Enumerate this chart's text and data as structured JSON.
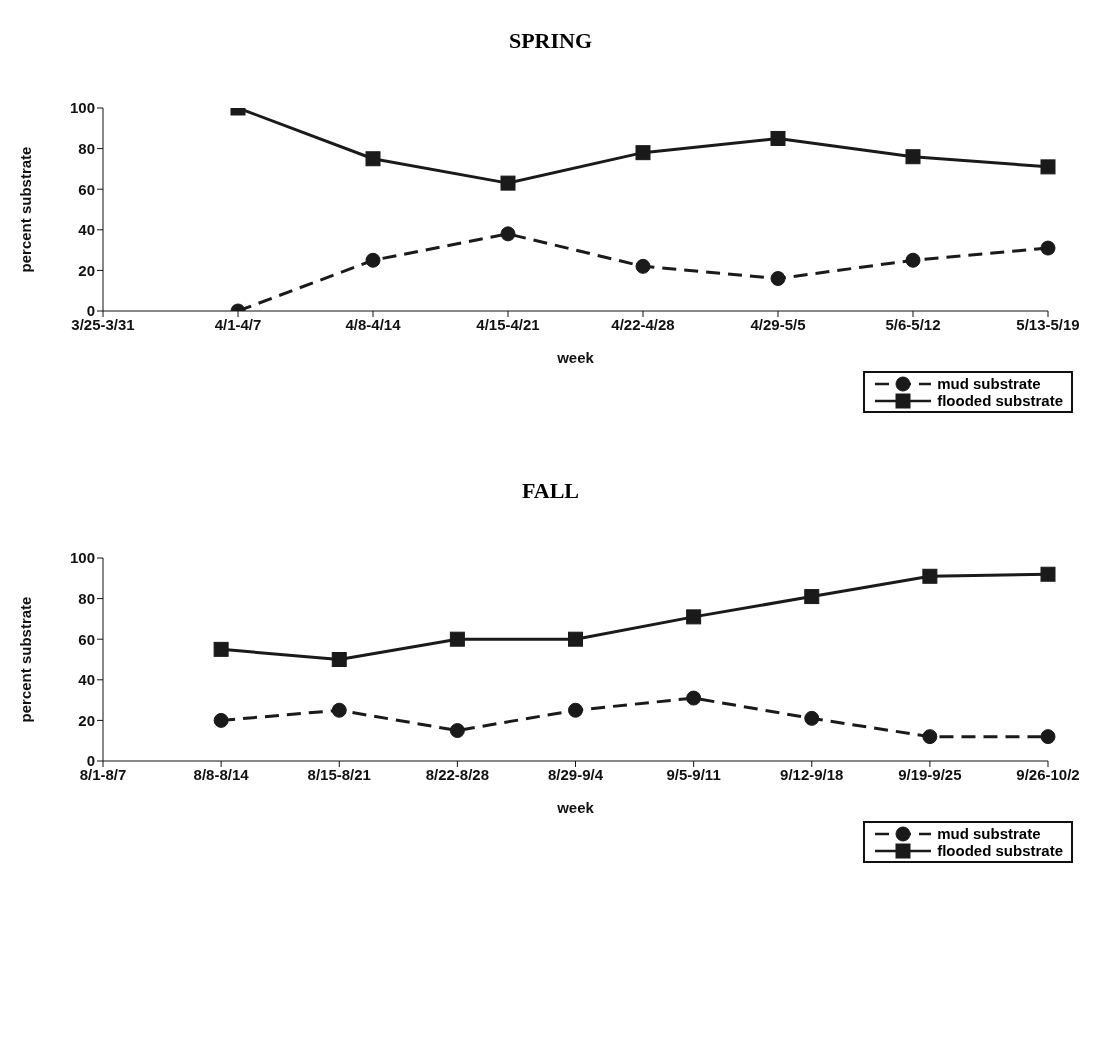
{
  "chart_data": [
    {
      "type": "line",
      "title": "SPRING",
      "xlabel": "week",
      "ylabel": "percent substrate",
      "categories": [
        "3/25-3/31",
        "4/1-4/7",
        "4/8-4/14",
        "4/15-4/21",
        "4/22-4/28",
        "4/29-5/5",
        "5/6-5/12",
        "5/13-5/19"
      ],
      "series": [
        {
          "name": "mud substrate",
          "color": "#1a1a1a",
          "marker": "circle",
          "line_style": "dashed",
          "values": [
            null,
            0,
            25,
            38,
            22,
            16,
            25,
            31
          ]
        },
        {
          "name": "flooded substrate",
          "color": "#1a1a1a",
          "marker": "square",
          "line_style": "solid",
          "values": [
            null,
            100,
            75,
            63,
            78,
            85,
            76,
            71
          ]
        }
      ],
      "ylim": [
        0,
        100
      ],
      "yticks": [
        0,
        20,
        40,
        60,
        80,
        100
      ],
      "grid": false,
      "legend": "bottom right"
    },
    {
      "type": "line",
      "title": "FALL",
      "xlabel": "week",
      "ylabel": "percent substrate",
      "categories": [
        "8/1-8/7",
        "8/8-8/14",
        "8/15-8/21",
        "8/22-8/28",
        "8/29-9/4",
        "9/5-9/11",
        "9/12-9/18",
        "9/19-9/25",
        "9/26-10/2"
      ],
      "series": [
        {
          "name": "mud substrate",
          "color": "#1a1a1a",
          "marker": "circle",
          "line_style": "dashed",
          "values": [
            null,
            20,
            25,
            15,
            25,
            31,
            21,
            12,
            12
          ]
        },
        {
          "name": "flooded substrate",
          "color": "#1a1a1a",
          "marker": "square",
          "line_style": "solid",
          "values": [
            null,
            55,
            50,
            60,
            60,
            71,
            81,
            91,
            92
          ]
        }
      ],
      "ylim": [
        0,
        100
      ],
      "yticks": [
        0,
        20,
        40,
        60,
        80,
        100
      ],
      "grid": false,
      "legend": "bottom right"
    }
  ]
}
